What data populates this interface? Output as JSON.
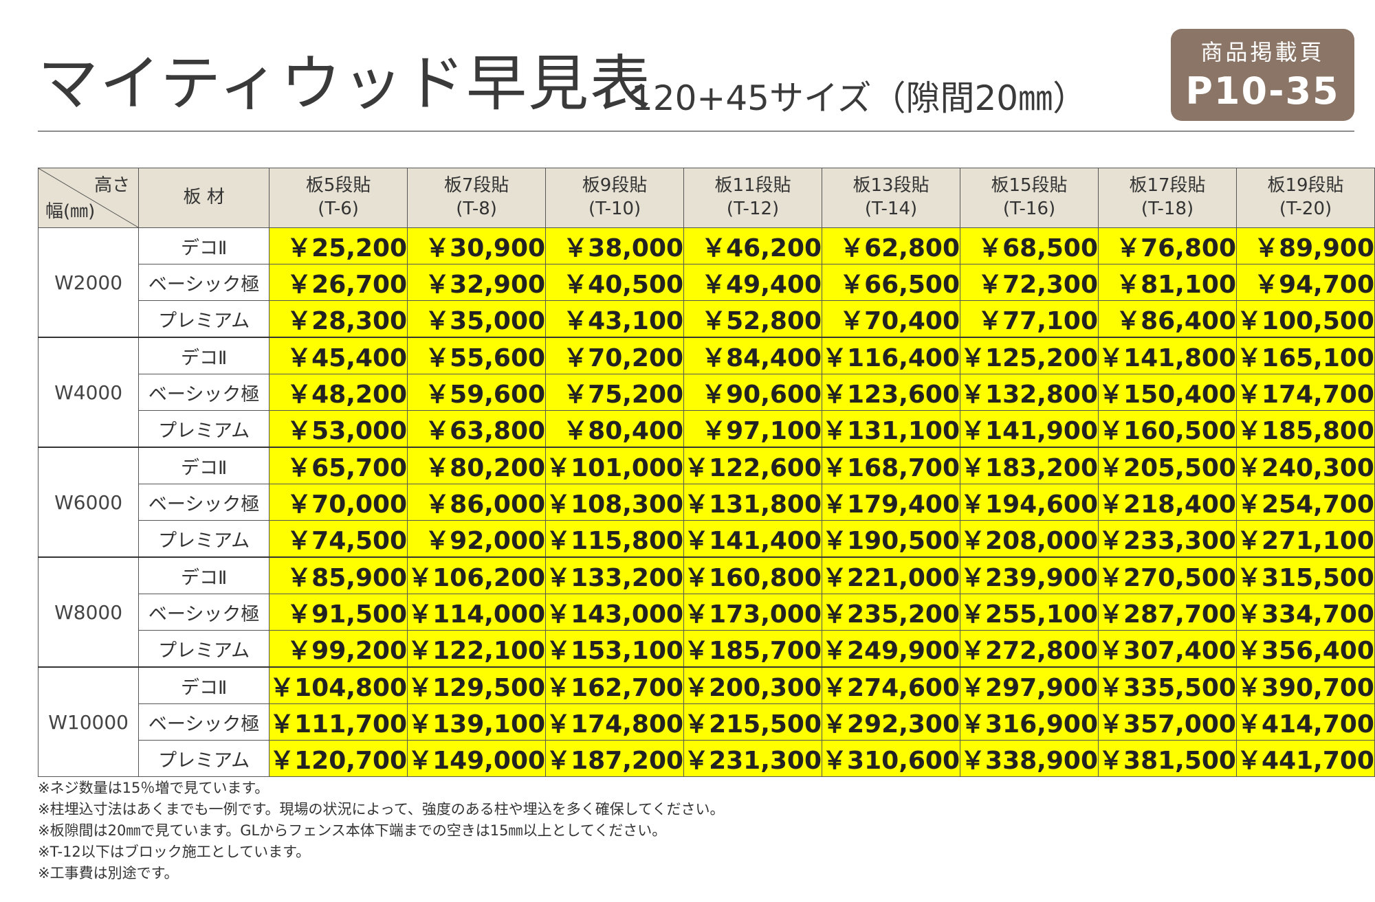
{
  "header": {
    "title": "マイティウッド早見表",
    "subtitle": "120+45サイズ（隙間20㎜）",
    "badge_label": "商品掲載頁",
    "badge_pages": "P10-35"
  },
  "colors": {
    "price_cell": "#ffff00",
    "header_bg": "#e6e1d3",
    "badge_bg": "#8a7566"
  },
  "table": {
    "corner_height_label": "高さ",
    "corner_width_label": "幅(㎜)",
    "material_header": "板 材",
    "columns": [
      {
        "name": "板5段貼",
        "code": "(T-6)"
      },
      {
        "name": "板7段貼",
        "code": "(T-8)"
      },
      {
        "name": "板9段貼",
        "code": "(T-10)"
      },
      {
        "name": "板11段貼",
        "code": "(T-12)"
      },
      {
        "name": "板13段貼",
        "code": "(T-14)"
      },
      {
        "name": "板15段貼",
        "code": "(T-16)"
      },
      {
        "name": "板17段貼",
        "code": "(T-18)"
      },
      {
        "name": "板19段貼",
        "code": "(T-20)"
      }
    ],
    "groups": [
      {
        "width": "W2000",
        "rows": [
          {
            "material": "デコⅡ",
            "prices": [
              "￥25,200",
              "￥30,900",
              "￥38,000",
              "￥46,200",
              "￥62,800",
              "￥68,500",
              "￥76,800",
              "￥89,900"
            ]
          },
          {
            "material": "ベーシック極",
            "prices": [
              "￥26,700",
              "￥32,900",
              "￥40,500",
              "￥49,400",
              "￥66,500",
              "￥72,300",
              "￥81,100",
              "￥94,700"
            ]
          },
          {
            "material": "プレミアム",
            "prices": [
              "￥28,300",
              "￥35,000",
              "￥43,100",
              "￥52,800",
              "￥70,400",
              "￥77,100",
              "￥86,400",
              "￥100,500"
            ]
          }
        ]
      },
      {
        "width": "W4000",
        "rows": [
          {
            "material": "デコⅡ",
            "prices": [
              "￥45,400",
              "￥55,600",
              "￥70,200",
              "￥84,400",
              "￥116,400",
              "￥125,200",
              "￥141,800",
              "￥165,100"
            ]
          },
          {
            "material": "ベーシック極",
            "prices": [
              "￥48,200",
              "￥59,600",
              "￥75,200",
              "￥90,600",
              "￥123,600",
              "￥132,800",
              "￥150,400",
              "￥174,700"
            ]
          },
          {
            "material": "プレミアム",
            "prices": [
              "￥53,000",
              "￥63,800",
              "￥80,400",
              "￥97,100",
              "￥131,100",
              "￥141,900",
              "￥160,500",
              "￥185,800"
            ]
          }
        ]
      },
      {
        "width": "W6000",
        "rows": [
          {
            "material": "デコⅡ",
            "prices": [
              "￥65,700",
              "￥80,200",
              "￥101,000",
              "￥122,600",
              "￥168,700",
              "￥183,200",
              "￥205,500",
              "￥240,300"
            ]
          },
          {
            "material": "ベーシック極",
            "prices": [
              "￥70,000",
              "￥86,000",
              "￥108,300",
              "￥131,800",
              "￥179,400",
              "￥194,600",
              "￥218,400",
              "￥254,700"
            ]
          },
          {
            "material": "プレミアム",
            "prices": [
              "￥74,500",
              "￥92,000",
              "￥115,800",
              "￥141,400",
              "￥190,500",
              "￥208,000",
              "￥233,300",
              "￥271,100"
            ]
          }
        ]
      },
      {
        "width": "W8000",
        "rows": [
          {
            "material": "デコⅡ",
            "prices": [
              "￥85,900",
              "￥106,200",
              "￥133,200",
              "￥160,800",
              "￥221,000",
              "￥239,900",
              "￥270,500",
              "￥315,500"
            ]
          },
          {
            "material": "ベーシック極",
            "prices": [
              "￥91,500",
              "￥114,000",
              "￥143,000",
              "￥173,000",
              "￥235,200",
              "￥255,100",
              "￥287,700",
              "￥334,700"
            ]
          },
          {
            "material": "プレミアム",
            "prices": [
              "￥99,200",
              "￥122,100",
              "￥153,100",
              "￥185,700",
              "￥249,900",
              "￥272,800",
              "￥307,400",
              "￥356,400"
            ]
          }
        ]
      },
      {
        "width": "W10000",
        "rows": [
          {
            "material": "デコⅡ",
            "prices": [
              "￥104,800",
              "￥129,500",
              "￥162,700",
              "￥200,300",
              "￥274,600",
              "￥297,900",
              "￥335,500",
              "￥390,700"
            ]
          },
          {
            "material": "ベーシック極",
            "prices": [
              "￥111,700",
              "￥139,100",
              "￥174,800",
              "￥215,500",
              "￥292,300",
              "￥316,900",
              "￥357,000",
              "￥414,700"
            ]
          },
          {
            "material": "プレミアム",
            "prices": [
              "￥120,700",
              "￥149,000",
              "￥187,200",
              "￥231,300",
              "￥310,600",
              "￥338,900",
              "￥381,500",
              "￥441,700"
            ]
          }
        ]
      }
    ]
  },
  "notes": [
    "※ネジ数量は15％増で見ています。",
    "※柱埋込寸法はあくまでも一例です。現場の状況によって、強度のある柱や埋込を多く確保してください。",
    "※板隙間は20㎜で見ています。GLからフェンス本体下端までの空きは15㎜以上としてください。",
    "※T-12以下はブロック施工としています。",
    "※工事費は別途です。"
  ]
}
